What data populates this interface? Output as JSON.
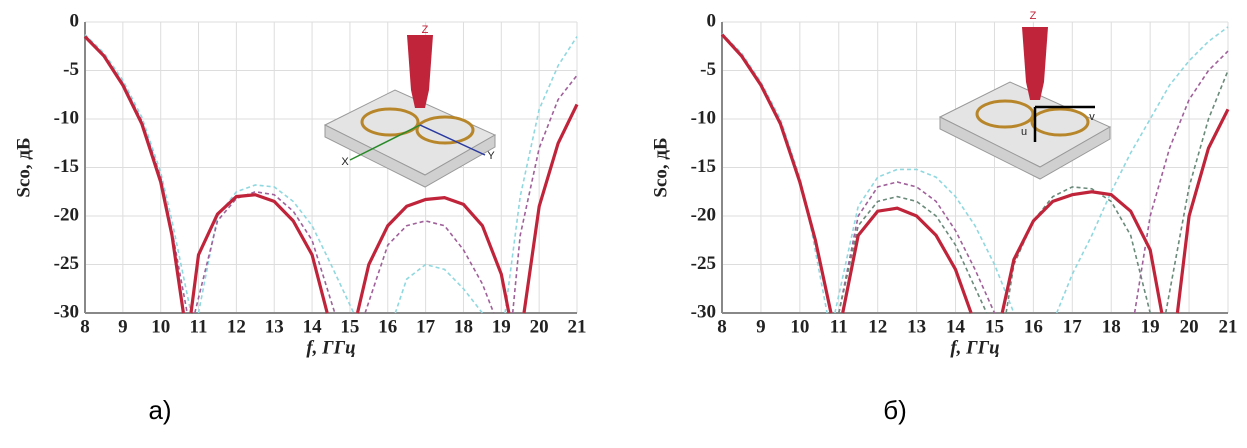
{
  "chart_data": [
    {
      "type": "line",
      "caption": "а)",
      "xlabel": "f, ГГц",
      "ylabel": "Sco, дБ",
      "xlim": [
        8,
        21
      ],
      "ylim": [
        -30,
        0
      ],
      "xticks": [
        8,
        9,
        10,
        11,
        12,
        13,
        14,
        15,
        16,
        17,
        18,
        19,
        20,
        21
      ],
      "yticks": [
        0,
        -5,
        -10,
        -15,
        -20,
        -25,
        -30
      ],
      "grid": true,
      "inset_labels": [
        "Z",
        "X",
        "Y"
      ],
      "series": [
        {
          "color": "#8fd8e0",
          "dashed": true,
          "x": [
            8,
            8.5,
            9,
            9.5,
            10,
            10.3,
            10.8,
            null,
            11,
            11.5,
            12,
            12.5,
            13,
            13.5,
            14,
            14.5,
            15.1,
            null,
            16.2,
            16.5,
            17,
            17.5,
            18,
            18.5,
            null,
            19.1,
            19.5,
            20,
            20.5,
            21
          ],
          "values": [
            -1.3,
            -3.2,
            -6,
            -9.8,
            -15.5,
            -20.5,
            -30,
            null,
            -30,
            -20,
            -17.5,
            -16.8,
            -17,
            -18.5,
            -21,
            -25,
            -30,
            null,
            -30,
            -26.5,
            -25,
            -25.5,
            -27.5,
            -30,
            null,
            -30,
            -18,
            -9,
            -4.5,
            -1.5
          ]
        },
        {
          "color": "#a0609a",
          "dashed": true,
          "x": [
            8,
            8.5,
            9,
            9.5,
            10,
            10.3,
            10.7,
            null,
            10.9,
            11.5,
            12,
            12.5,
            13,
            13.5,
            14,
            14.6,
            null,
            15.4,
            16,
            16.5,
            17,
            17.5,
            18,
            18.5,
            18.8,
            null,
            19.3,
            19.5,
            20,
            20.5,
            21
          ],
          "values": [
            -1.5,
            -3.5,
            -6.3,
            -10.2,
            -16,
            -21.5,
            -30,
            null,
            -30,
            -20.5,
            -18.2,
            -17.5,
            -17.8,
            -19.5,
            -22.5,
            -30,
            null,
            -30,
            -23,
            -21,
            -20.5,
            -21,
            -23.5,
            -27,
            -30,
            null,
            -30,
            -22,
            -13,
            -8,
            -5.5
          ]
        },
        {
          "color": "#c0243a",
          "dashed": false,
          "x": [
            8,
            8.5,
            9,
            9.5,
            10,
            10.3,
            10.6,
            null,
            10.8,
            11,
            11.5,
            12,
            12.5,
            13,
            13.5,
            14,
            14.4,
            null,
            15.2,
            15.5,
            16,
            16.5,
            17,
            17.5,
            18,
            18.5,
            19,
            19.2,
            null,
            19.6,
            20,
            20.5,
            21
          ],
          "values": [
            -1.5,
            -3.5,
            -6.5,
            -10.5,
            -16.5,
            -22,
            -30,
            null,
            -30,
            -24,
            -19.8,
            -18,
            -17.8,
            -18.5,
            -20.5,
            -24,
            -30,
            null,
            -30,
            -25,
            -21,
            -19,
            -18.3,
            -18.1,
            -18.8,
            -21,
            -26,
            -30,
            null,
            -30,
            -19,
            -12.5,
            -8.5
          ]
        }
      ]
    },
    {
      "type": "line",
      "caption": "б)",
      "xlabel": "f, ГГц",
      "ylabel": "Sco, дБ",
      "xlim": [
        8,
        21
      ],
      "ylim": [
        -30,
        0
      ],
      "xticks": [
        8,
        9,
        10,
        11,
        12,
        13,
        14,
        15,
        16,
        17,
        18,
        19,
        20,
        21
      ],
      "yticks": [
        0,
        -5,
        -10,
        -15,
        -20,
        -25,
        -30
      ],
      "grid": true,
      "inset_labels": [
        "Z",
        "u",
        "v"
      ],
      "series": [
        {
          "color": "#8fd8e0",
          "dashed": true,
          "x": [
            8,
            8.5,
            9,
            9.5,
            10,
            10.3,
            10.7,
            null,
            10.9,
            11.5,
            12,
            12.5,
            13,
            13.5,
            14,
            14.5,
            15,
            15.5,
            null,
            16.6,
            17,
            17.5,
            18,
            18.5,
            19,
            19.5,
            20,
            20.5,
            21
          ],
          "values": [
            -1.2,
            -3.2,
            -6.2,
            -10,
            -16,
            -21.5,
            -30,
            null,
            -30,
            -19,
            -16,
            -15.2,
            -15.2,
            -16,
            -18,
            -21,
            -25,
            -30,
            null,
            -30,
            -26,
            -22,
            -17.5,
            -13.5,
            -10,
            -6.5,
            -4,
            -2,
            -0.5
          ]
        },
        {
          "color": "#a0609a",
          "dashed": true,
          "x": [
            11,
            11.5,
            12,
            12.5,
            13,
            13.5,
            14,
            14.5,
            15,
            null,
            18.6,
            19,
            19.5,
            20,
            20.5,
            21
          ],
          "values": [
            -30,
            -20,
            -17,
            -16.5,
            -17,
            -18.5,
            -21.5,
            -25.5,
            -30,
            null,
            -30,
            -20,
            -13,
            -8,
            -5,
            -3
          ]
        },
        {
          "color": "#6a8a7a",
          "dashed": true,
          "x": [
            11,
            11.5,
            12,
            12.5,
            13,
            13.5,
            14,
            14.8,
            null,
            15.3,
            15.5,
            16,
            16.5,
            17,
            17.5,
            18,
            18.5,
            19,
            null,
            19.4,
            20,
            20.5,
            21
          ],
          "values": [
            -30,
            -21,
            -18.5,
            -18,
            -18.5,
            -20,
            -23,
            -30,
            null,
            -30,
            -25,
            -20.5,
            -18,
            -17,
            -17.2,
            -18.5,
            -22,
            -30,
            null,
            -30,
            -17,
            -10,
            -5
          ]
        },
        {
          "color": "#c0243a",
          "dashed": false,
          "x": [
            8,
            8.5,
            9,
            9.5,
            10,
            10.4,
            10.8,
            null,
            11.1,
            11.5,
            12,
            12.5,
            13,
            13.5,
            14,
            14.4,
            null,
            15.2,
            15.5,
            16,
            16.5,
            17,
            17.5,
            18,
            18.5,
            19,
            19.3,
            null,
            19.7,
            20,
            20.5,
            21
          ],
          "values": [
            -1.3,
            -3.5,
            -6.5,
            -10.5,
            -16.5,
            -22.5,
            -30,
            null,
            -30,
            -22,
            -19.5,
            -19.2,
            -20,
            -22,
            -25.5,
            -30,
            null,
            -30,
            -24.5,
            -20.5,
            -18.5,
            -17.8,
            -17.5,
            -17.8,
            -19.5,
            -23.5,
            -30,
            null,
            -30,
            -20,
            -13,
            -9
          ]
        }
      ]
    }
  ]
}
